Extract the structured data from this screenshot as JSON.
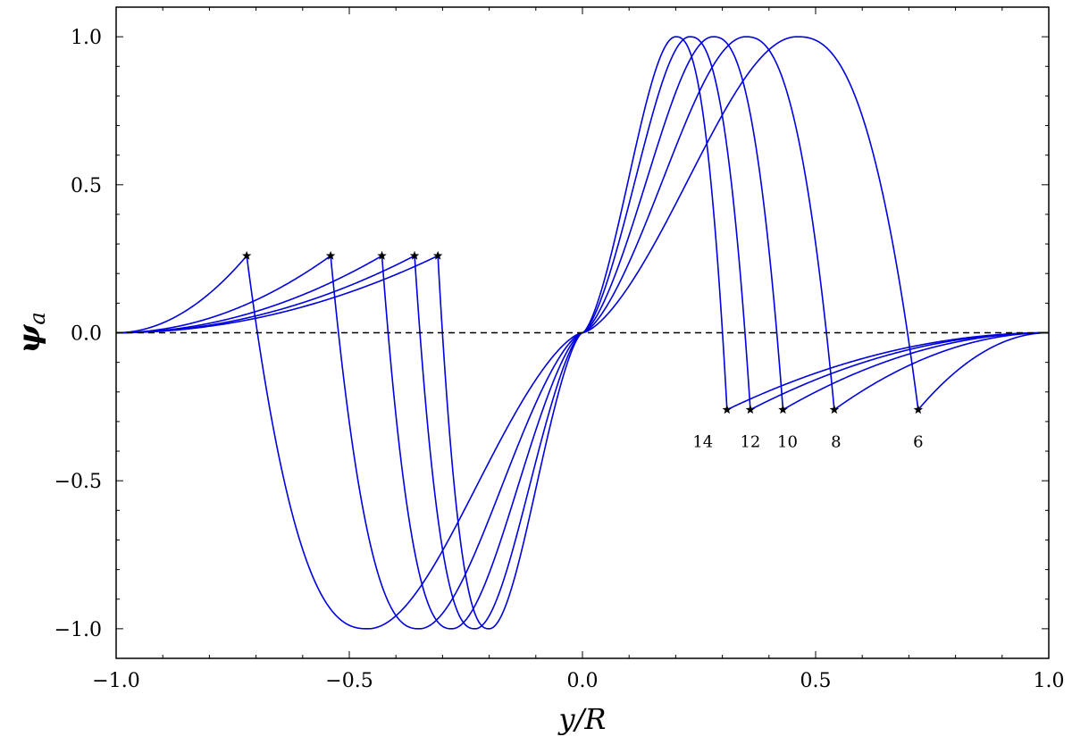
{
  "chart_data": {
    "type": "line",
    "title": "",
    "xlabel": "y/R",
    "ylabel": "ψa",
    "xlim": [
      -1.0,
      1.0
    ],
    "ylim": [
      -1.1,
      1.1
    ],
    "xticks": [
      "−1.0",
      "−0.5",
      "0.0",
      "0.5",
      "1.0"
    ],
    "yticks": [
      "−1.0",
      "−0.5",
      "0.0",
      "0.5",
      "1.0"
    ],
    "grid": false,
    "line_color": "#0000dd",
    "marker_color": "#000000",
    "reference_line": {
      "y": 0.0,
      "style": "dashed"
    },
    "series": [
      {
        "label": "6",
        "junction_x": 0.72,
        "peak_x": 0.46,
        "marker_y": 0.26
      },
      {
        "label": "8",
        "junction_x": 0.54,
        "peak_x": 0.35,
        "marker_y": 0.26
      },
      {
        "label": "10",
        "junction_x": 0.43,
        "peak_x": 0.28,
        "marker_y": 0.26
      },
      {
        "label": "12",
        "junction_x": 0.36,
        "peak_x": 0.23,
        "marker_y": 0.26
      },
      {
        "label": "14",
        "junction_x": 0.31,
        "peak_x": 0.2,
        "marker_y": 0.26
      }
    ]
  }
}
